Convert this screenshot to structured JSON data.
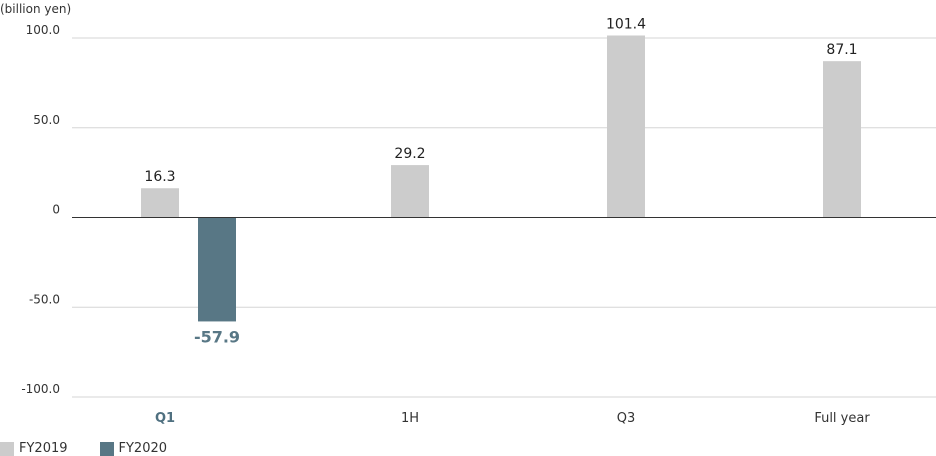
{
  "chart_data": {
    "type": "bar",
    "unit_label": "(billion yen)",
    "categories": [
      "Q1",
      "1H",
      "Q3",
      "Full year"
    ],
    "highlight_category": "Q1",
    "series": [
      {
        "name": "FY2019",
        "color": "#cccccc",
        "values": [
          16.3,
          29.2,
          101.4,
          87.1
        ],
        "labels": [
          "16.3",
          "29.2",
          "101.4",
          "87.1"
        ]
      },
      {
        "name": "FY2020",
        "color": "#587785",
        "values": [
          -57.9,
          null,
          null,
          null
        ],
        "labels": [
          "-57.9",
          null,
          null,
          null
        ]
      }
    ],
    "ylim": [
      -100,
      100
    ],
    "yticks": [
      100,
      50,
      0,
      -50,
      -100
    ],
    "ytick_labels": [
      "100.0",
      "50.0",
      "0",
      "-50.0",
      "-100.0"
    ],
    "grid": true,
    "legend_position": "bottom-left"
  }
}
